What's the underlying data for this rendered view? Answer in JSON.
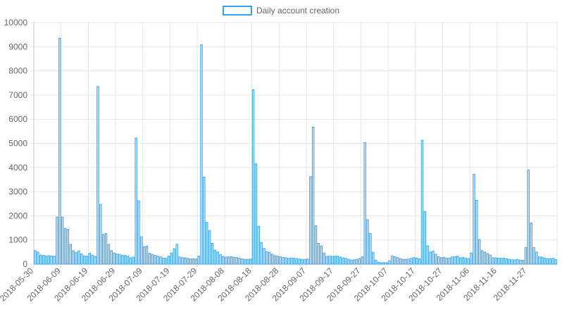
{
  "colors": {
    "bar_fill": "#d6ebfa",
    "bar_stroke": "#36a2eb",
    "grid": "#e6e6e6",
    "text": "#666666"
  },
  "chart_data": {
    "type": "bar",
    "title": "",
    "xlabel": "",
    "ylabel": "",
    "ylim": [
      0,
      10000
    ],
    "yticks": [
      0,
      1000,
      2000,
      3000,
      4000,
      5000,
      6000,
      7000,
      8000,
      9000,
      10000
    ],
    "grid": true,
    "legend": {
      "position": "top",
      "label": "Daily account creation"
    },
    "x_start": "2018-05-30",
    "xtick_labels": [
      "2018-05-30",
      "2018-06-09",
      "2018-06-19",
      "2018-06-29",
      "2018-07-09",
      "2018-07-19",
      "2018-07-29",
      "2018-08-08",
      "2018-08-18",
      "2018-08-28",
      "2018-09-07",
      "2018-09-17",
      "2018-09-27",
      "2018-10-07",
      "2018-10-17",
      "2018-10-27",
      "2018-11-06",
      "2018-11-16",
      "2018-11-27"
    ],
    "series": [
      {
        "name": "Daily account creation",
        "values": [
          560,
          500,
          380,
          360,
          340,
          350,
          340,
          330,
          1950,
          9350,
          1950,
          1480,
          1440,
          820,
          560,
          480,
          550,
          420,
          340,
          330,
          450,
          370,
          320,
          7350,
          2470,
          1230,
          1270,
          820,
          560,
          460,
          420,
          400,
          360,
          360,
          330,
          260,
          290,
          5220,
          2620,
          1130,
          720,
          740,
          450,
          400,
          370,
          330,
          300,
          250,
          240,
          330,
          460,
          640,
          820,
          300,
          270,
          260,
          240,
          220,
          220,
          210,
          330,
          9080,
          3600,
          1730,
          1390,
          860,
          580,
          500,
          390,
          320,
          290,
          300,
          310,
          280,
          270,
          240,
          210,
          200,
          200,
          210,
          7220,
          4150,
          1560,
          900,
          650,
          510,
          490,
          410,
          350,
          330,
          300,
          280,
          260,
          240,
          250,
          240,
          230,
          210,
          200,
          200,
          210,
          3620,
          5670,
          1590,
          860,
          750,
          460,
          320,
          330,
          320,
          330,
          330,
          290,
          260,
          240,
          200,
          170,
          180,
          200,
          240,
          300,
          5030,
          1840,
          1270,
          490,
          170,
          80,
          60,
          60,
          60,
          140,
          340,
          310,
          270,
          230,
          200,
          200,
          210,
          240,
          270,
          250,
          220,
          5130,
          2180,
          760,
          500,
          540,
          410,
          310,
          270,
          280,
          240,
          250,
          300,
          310,
          330,
          260,
          280,
          240,
          230,
          460,
          3720,
          2640,
          1020,
          560,
          500,
          440,
          380,
          260,
          260,
          250,
          240,
          250,
          220,
          200,
          180,
          180,
          200,
          170,
          160,
          690,
          3900,
          1700,
          690,
          500,
          300,
          290,
          250,
          230,
          230,
          240,
          190
        ]
      }
    ]
  }
}
